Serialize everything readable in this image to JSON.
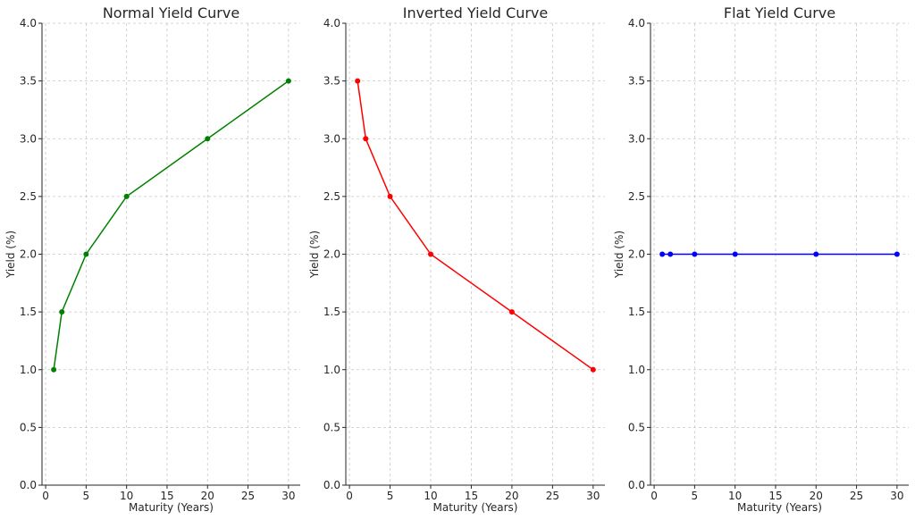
{
  "chart_data": [
    {
      "type": "line",
      "title": "Normal Yield Curve",
      "xlabel": "Maturity (Years)",
      "ylabel": "Yield (%)",
      "x": [
        1,
        2,
        5,
        10,
        20,
        30
      ],
      "series": [
        {
          "values": [
            1.0,
            1.5,
            2.0,
            2.5,
            3.0,
            3.5
          ],
          "color": "#008000"
        }
      ],
      "xlim": [
        -0.45,
        31.45
      ],
      "ylim": [
        0,
        4.0
      ],
      "xticks": [
        0,
        5,
        10,
        15,
        20,
        25,
        30
      ],
      "yticks": [
        0.0,
        0.5,
        1.0,
        1.5,
        2.0,
        2.5,
        3.0,
        3.5,
        4.0
      ],
      "grid": true
    },
    {
      "type": "line",
      "title": "Inverted Yield Curve",
      "xlabel": "Maturity (Years)",
      "ylabel": "Yield (%)",
      "x": [
        1,
        2,
        5,
        10,
        20,
        30
      ],
      "series": [
        {
          "values": [
            3.5,
            3.0,
            2.5,
            2.0,
            1.5,
            1.0
          ],
          "color": "#ff0000"
        }
      ],
      "xlim": [
        -0.45,
        31.45
      ],
      "ylim": [
        0,
        4.0
      ],
      "xticks": [
        0,
        5,
        10,
        15,
        20,
        25,
        30
      ],
      "yticks": [
        0.0,
        0.5,
        1.0,
        1.5,
        2.0,
        2.5,
        3.0,
        3.5,
        4.0
      ],
      "grid": true
    },
    {
      "type": "line",
      "title": "Flat Yield Curve",
      "xlabel": "Maturity (Years)",
      "ylabel": "Yield (%)",
      "x": [
        1,
        2,
        5,
        10,
        20,
        30
      ],
      "series": [
        {
          "values": [
            2.0,
            2.0,
            2.0,
            2.0,
            2.0,
            2.0
          ],
          "color": "#0000ff"
        }
      ],
      "xlim": [
        -0.45,
        31.45
      ],
      "ylim": [
        0,
        4.0
      ],
      "xticks": [
        0,
        5,
        10,
        15,
        20,
        25,
        30
      ],
      "yticks": [
        0.0,
        0.5,
        1.0,
        1.5,
        2.0,
        2.5,
        3.0,
        3.5,
        4.0
      ],
      "grid": true
    }
  ]
}
